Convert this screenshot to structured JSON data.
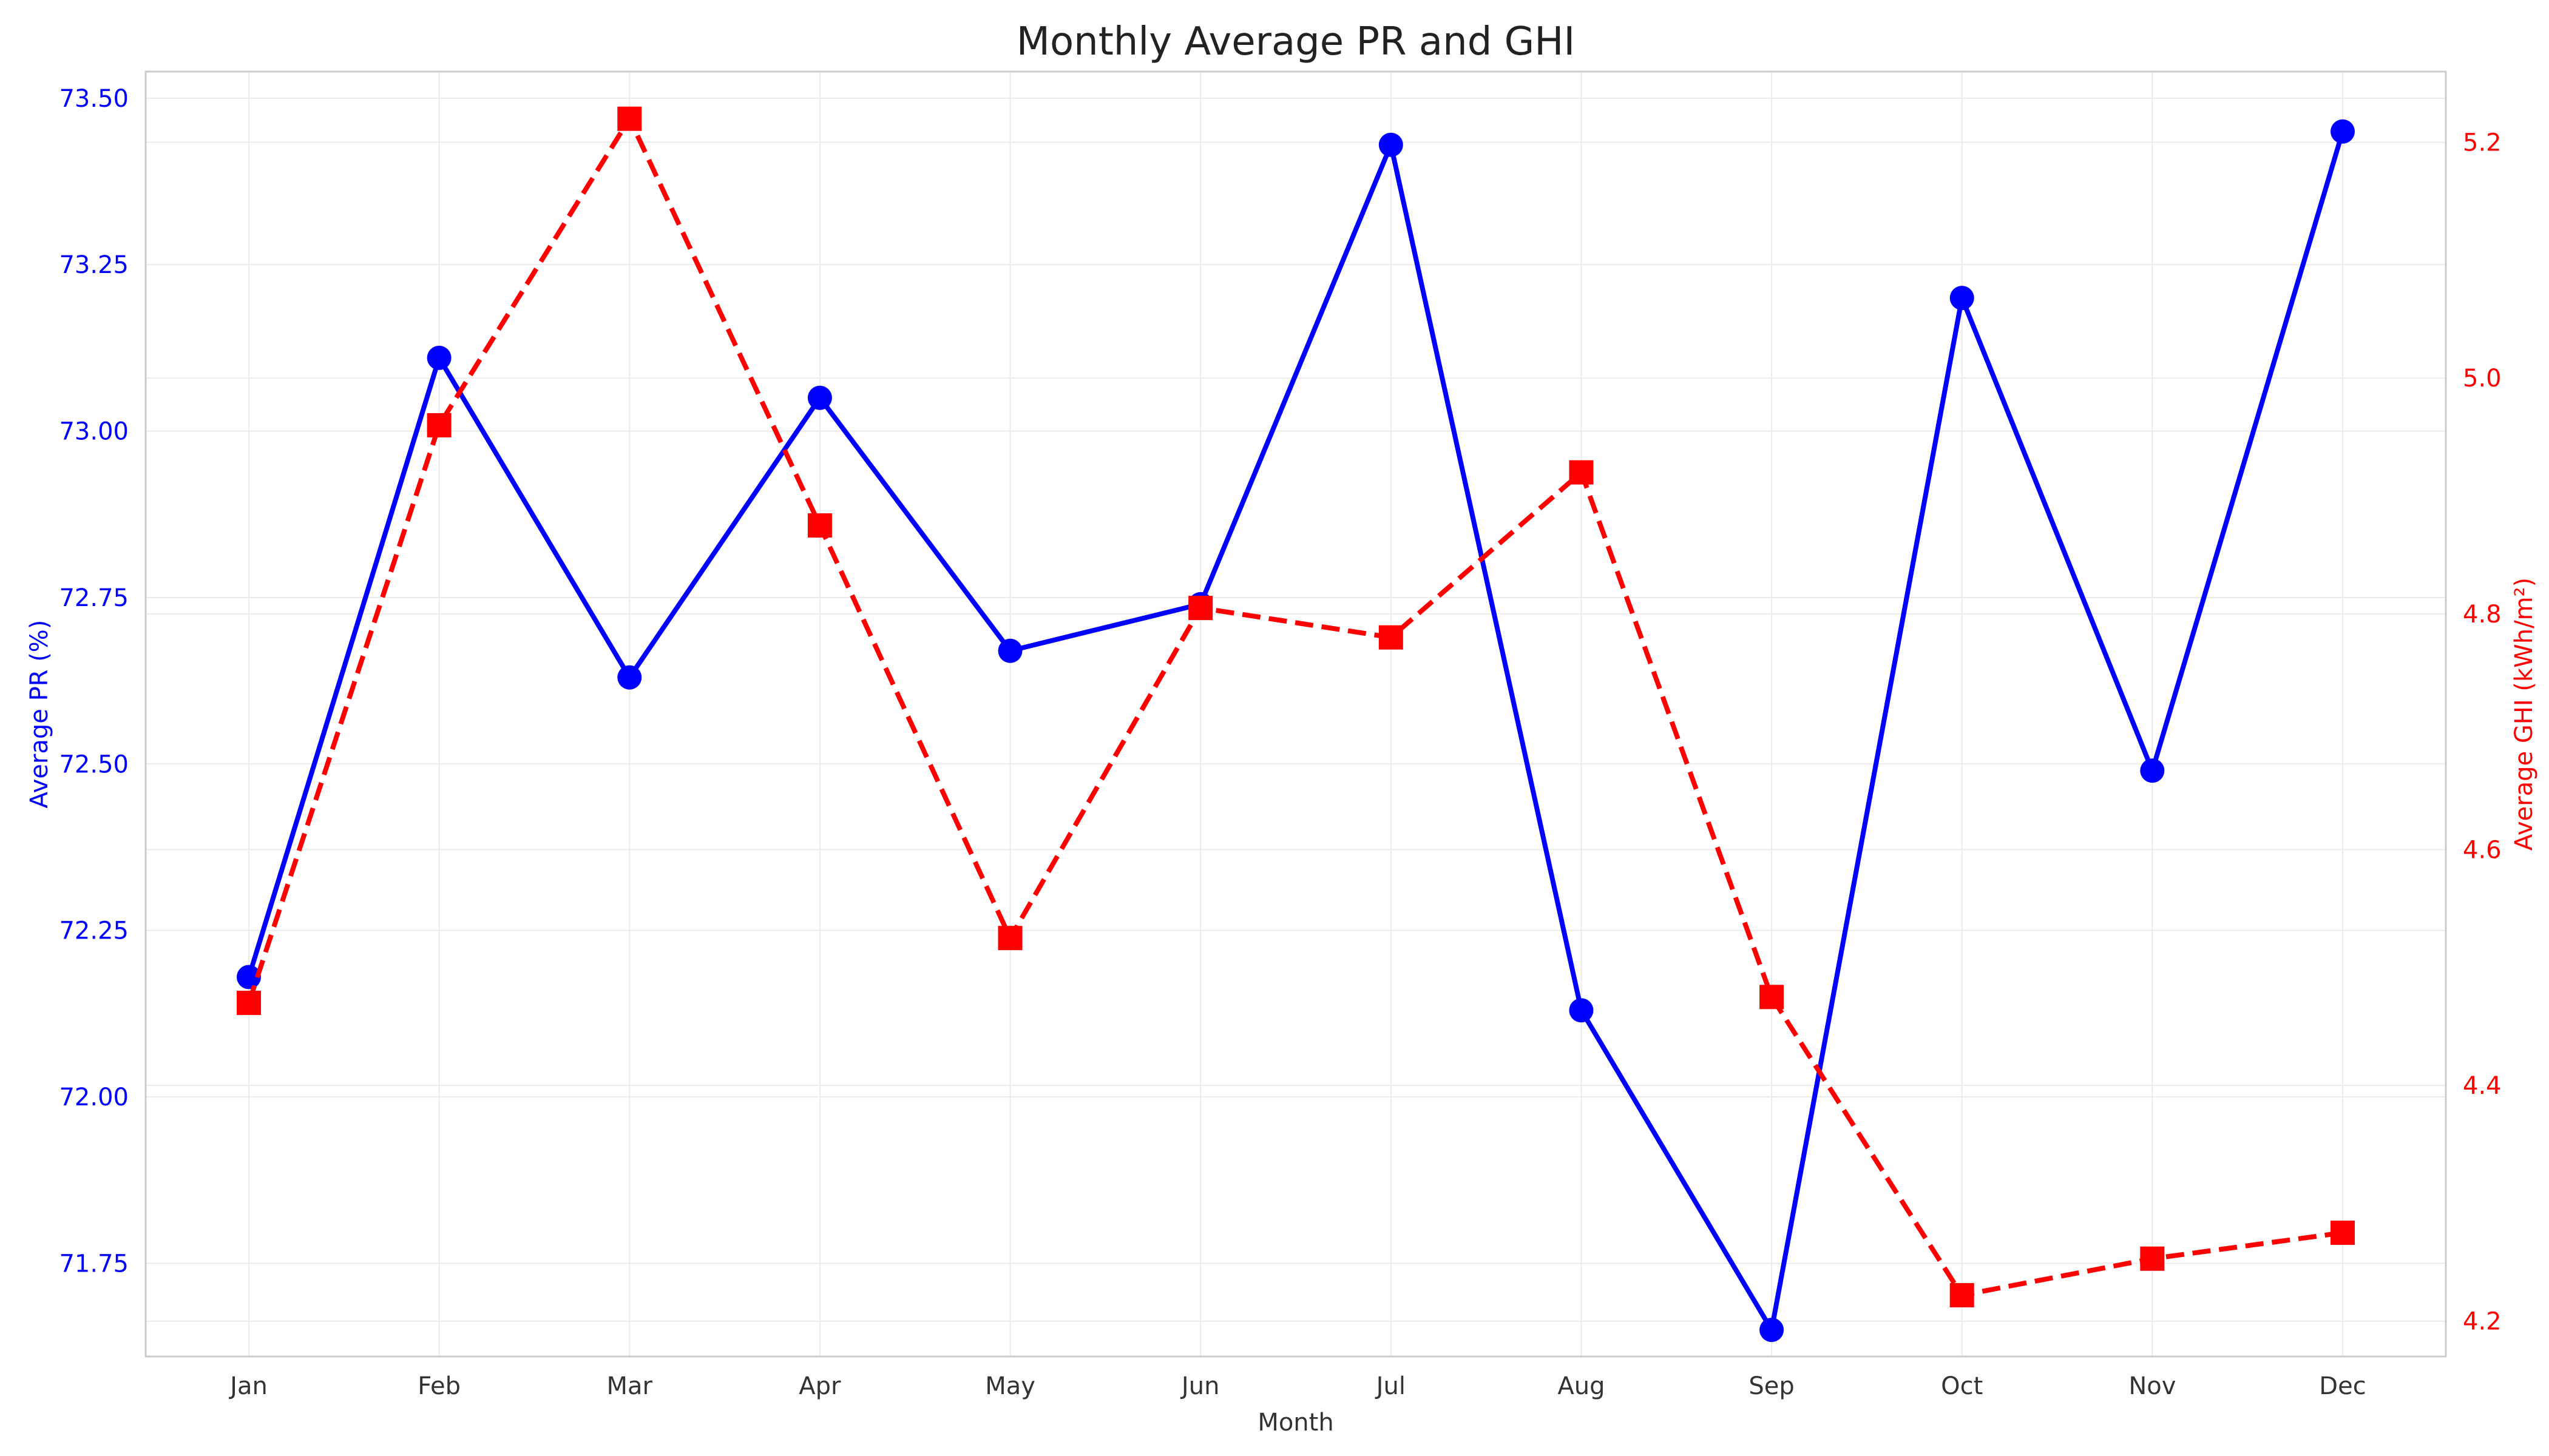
{
  "chart_data": {
    "type": "line",
    "title": "Monthly Average PR and GHI",
    "xlabel": "Month",
    "categories": [
      "Jan",
      "Feb",
      "Mar",
      "Apr",
      "May",
      "Jun",
      "Jul",
      "Aug",
      "Sep",
      "Oct",
      "Nov",
      "Dec"
    ],
    "grid": true,
    "series": [
      {
        "axis": "left",
        "color": "#0000ff",
        "line_style": "solid",
        "marker": "circle",
        "values": [
          72.18,
          73.11,
          72.63,
          73.05,
          72.67,
          72.74,
          73.43,
          72.13,
          71.65,
          73.2,
          72.49,
          73.45
        ]
      },
      {
        "axis": "right",
        "color": "#ff0000",
        "line_style": "dashed",
        "marker": "square",
        "values": [
          4.47,
          4.96,
          5.22,
          4.875,
          4.525,
          4.805,
          4.78,
          4.92,
          4.475,
          4.222,
          4.253,
          4.275
        ]
      }
    ],
    "y_left": {
      "label": "Average PR (%)",
      "color": "#0000ff",
      "ylim": [
        71.61,
        73.54
      ],
      "ticks": [
        "71.75",
        "72.00",
        "72.25",
        "72.50",
        "72.75",
        "73.00",
        "73.25",
        "73.50"
      ]
    },
    "y_right": {
      "label": "Average GHI (kWh/m²)",
      "color": "#ff0000",
      "ylim": [
        4.17,
        5.26
      ],
      "ticks": [
        "4.2",
        "4.4",
        "4.6",
        "4.8",
        "5.0",
        "5.2"
      ]
    }
  }
}
